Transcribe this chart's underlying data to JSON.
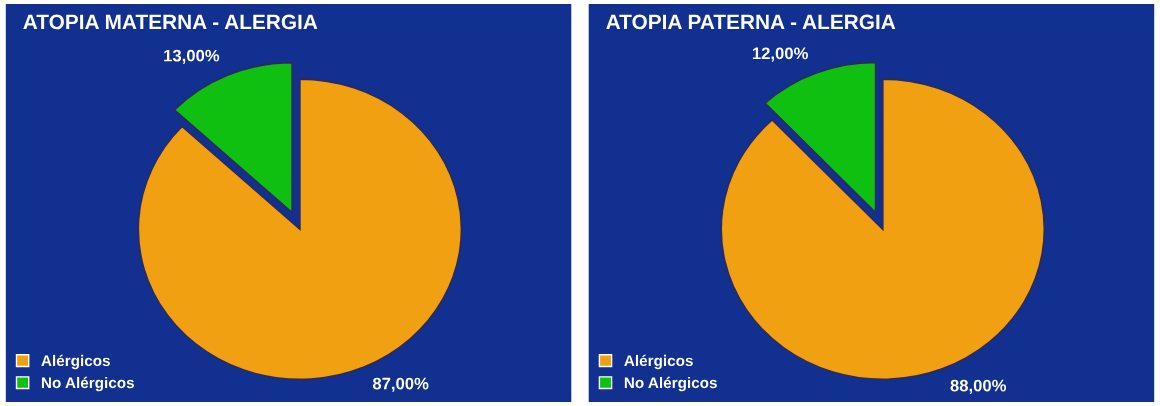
{
  "chart_data": [
    {
      "type": "pie",
      "title": "ATOPIA MATERNA - ALERGIA",
      "categories": [
        "Alérgicos",
        "No Alérgicos"
      ],
      "values": [
        87,
        13
      ],
      "colors": [
        "#f0a010",
        "#10c010"
      ],
      "value_labels": [
        "87,00%",
        "13,00%"
      ],
      "legend": "bottom left"
    },
    {
      "type": "pie",
      "title": "ATOPIA PATERNA - ALERGIA",
      "categories": [
        "Alérgicos",
        "No Alérgicos"
      ],
      "values": [
        88,
        12
      ],
      "colors": [
        "#f0a010",
        "#10c010"
      ],
      "value_labels": [
        "88,00%",
        "12,00%"
      ],
      "legend": "bottom left"
    }
  ]
}
